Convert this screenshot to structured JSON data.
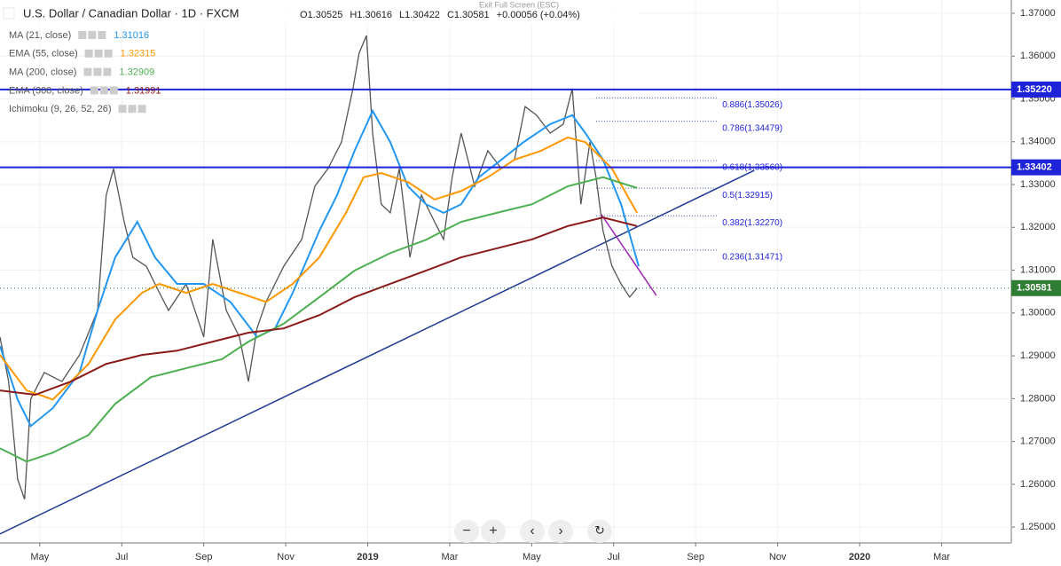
{
  "header": {
    "symbol": "U.S. Dollar / Canadian Dollar · 1D · FXCM",
    "ohlc": [
      "O1.30525",
      "H1.30616",
      "L1.30422",
      "C1.30581",
      "+0.00056 (+0.04%)"
    ],
    "exit": "Exit Full Screen (ESC)"
  },
  "indicators": [
    {
      "name": "MA (21, close)",
      "value": "1.31016",
      "color": "#2196f3"
    },
    {
      "name": "EMA (55, close)",
      "value": "1.32315",
      "color": "#ff9800"
    },
    {
      "name": "MA (200, close)",
      "value": "1.32909",
      "color": "#4caf50"
    },
    {
      "name": "EMA (300, close)",
      "value": "1.31991",
      "color": "#8b1a1a"
    },
    {
      "name": "Ichimoku (9, 26, 52, 26)",
      "value": null,
      "color": "#888"
    }
  ],
  "chart_data": {
    "type": "line",
    "xlim": [
      -0.97,
      23.7
    ],
    "ylim": [
      1.2463,
      1.3731
    ],
    "xticks": [
      {
        "value": 0,
        "label": "May"
      },
      {
        "value": 2,
        "label": "Jul"
      },
      {
        "value": 4,
        "label": "Sep"
      },
      {
        "value": 6,
        "label": "Nov"
      },
      {
        "value": 8,
        "label": "2019"
      },
      {
        "value": 10,
        "label": "Mar"
      },
      {
        "value": 12,
        "label": "May"
      },
      {
        "value": 14,
        "label": "Jul"
      },
      {
        "value": 16,
        "label": "Sep"
      },
      {
        "value": 18,
        "label": "Nov"
      },
      {
        "value": 20,
        "label": "2020"
      },
      {
        "value": 22,
        "label": "Mar"
      }
    ],
    "yticks": [
      {
        "value": 1.37,
        "label": "1.37000"
      },
      {
        "value": 1.36,
        "label": "1.36000"
      },
      {
        "value": 1.35,
        "label": "1.35000"
      },
      {
        "value": 1.34,
        "label": "1.34000"
      },
      {
        "value": 1.33,
        "label": "1.33000"
      },
      {
        "value": 1.32,
        "label": "1.32000"
      },
      {
        "value": 1.31,
        "label": "1.31000"
      },
      {
        "value": 1.3,
        "label": "1.30000"
      },
      {
        "value": 1.29,
        "label": "1.29000"
      },
      {
        "value": 1.28,
        "label": "1.28000"
      },
      {
        "value": 1.27,
        "label": "1.27000"
      },
      {
        "value": 1.26,
        "label": "1.26000"
      },
      {
        "value": 1.25,
        "label": "1.25000"
      }
    ],
    "grid": true,
    "series": [
      {
        "role": "price",
        "color": "#555555",
        "x": [
          -0.97,
          -0.76,
          -0.54,
          -0.37,
          -0.22,
          0.11,
          0.54,
          0.97,
          1.41,
          1.62,
          1.8,
          2.06,
          2.27,
          2.6,
          2.92,
          3.14,
          3.57,
          4.0,
          4.22,
          4.55,
          4.87,
          5.09,
          5.3,
          5.52,
          5.95,
          6.39,
          6.71,
          7.03,
          7.36,
          7.64,
          7.79,
          7.97,
          8.12,
          8.33,
          8.55,
          8.77,
          9.03,
          9.31,
          9.63,
          9.85,
          10.06,
          10.28,
          10.61,
          10.93,
          11.26,
          11.58,
          11.84,
          12.12,
          12.45,
          12.77,
          12.99,
          13.2,
          13.42,
          13.57,
          13.74,
          13.96,
          14.18,
          14.39,
          14.57
        ],
        "values": [
          1.2944,
          1.284,
          1.2612,
          1.2565,
          1.2799,
          1.2861,
          1.284,
          1.2902,
          1.3006,
          1.3275,
          1.3337,
          1.3213,
          1.313,
          1.3109,
          1.3047,
          1.3006,
          1.3068,
          1.2944,
          1.3172,
          1.3006,
          1.2944,
          1.284,
          1.2964,
          1.3026,
          1.3109,
          1.3172,
          1.3296,
          1.3337,
          1.3399,
          1.3524,
          1.3607,
          1.3648,
          1.342,
          1.3254,
          1.3234,
          1.3337,
          1.313,
          1.3275,
          1.3213,
          1.3172,
          1.3317,
          1.342,
          1.3296,
          1.3379,
          1.3337,
          1.3358,
          1.3482,
          1.3462,
          1.342,
          1.3441,
          1.3524,
          1.3254,
          1.3399,
          1.3317,
          1.3192,
          1.3109,
          1.3068,
          1.3037,
          1.3058
        ]
      },
      {
        "role": "ma",
        "color": "#2196f3",
        "x": [
          -0.97,
          -0.54,
          -0.22,
          0.32,
          0.97,
          1.41,
          1.84,
          2.38,
          2.81,
          3.35,
          4.0,
          4.65,
          5.3,
          5.74,
          6.17,
          6.82,
          7.25,
          7.68,
          8.12,
          8.55,
          8.98,
          9.42,
          9.85,
          10.28,
          10.71,
          11.26,
          11.8,
          12.45,
          12.99,
          13.31,
          13.74,
          14.18,
          14.61
        ],
        "values": [
          1.2923,
          1.2798,
          1.2736,
          1.2778,
          1.2861,
          1.3006,
          1.313,
          1.3213,
          1.313,
          1.3068,
          1.3068,
          1.3026,
          1.2944,
          1.2964,
          1.3047,
          1.3192,
          1.3275,
          1.3379,
          1.3472,
          1.3399,
          1.3296,
          1.3254,
          1.3234,
          1.3254,
          1.3317,
          1.3358,
          1.3399,
          1.3441,
          1.3462,
          1.342,
          1.3358,
          1.3254,
          1.3109
        ]
      },
      {
        "role": "ma",
        "color": "#ff9800",
        "x": [
          -0.97,
          -0.32,
          0.32,
          1.19,
          1.84,
          2.49,
          2.92,
          3.57,
          4.22,
          4.87,
          5.52,
          6.17,
          6.82,
          7.47,
          7.9,
          8.33,
          8.98,
          9.63,
          10.28,
          10.93,
          11.58,
          12.23,
          12.88,
          13.31,
          13.96,
          14.57
        ],
        "values": [
          1.2902,
          1.2819,
          1.2798,
          1.2881,
          1.2985,
          1.3047,
          1.3068,
          1.3047,
          1.3068,
          1.3047,
          1.3026,
          1.3068,
          1.313,
          1.3234,
          1.3317,
          1.3327,
          1.3306,
          1.3265,
          1.3285,
          1.3317,
          1.3358,
          1.3379,
          1.341,
          1.3399,
          1.3337,
          1.3234
        ]
      },
      {
        "role": "ma",
        "color": "#4caf50",
        "x": [
          -0.97,
          -0.32,
          0.32,
          1.19,
          1.84,
          2.71,
          3.57,
          4.44,
          5.09,
          5.95,
          6.82,
          7.68,
          8.55,
          9.42,
          10.28,
          11.15,
          12.01,
          12.88,
          13.74,
          14.57
        ],
        "values": [
          1.2684,
          1.2653,
          1.2674,
          1.2715,
          1.2788,
          1.285,
          1.2871,
          1.2892,
          1.2933,
          1.2975,
          1.3037,
          1.3099,
          1.314,
          1.3171,
          1.3213,
          1.3234,
          1.3254,
          1.3296,
          1.3317,
          1.3292
        ]
      },
      {
        "role": "ma",
        "color": "#8b1a1a",
        "x": [
          -0.97,
          -0.11,
          0.76,
          1.62,
          2.49,
          3.35,
          4.22,
          5.09,
          5.95,
          6.82,
          7.68,
          8.55,
          9.42,
          10.28,
          11.15,
          12.01,
          12.88,
          13.74,
          14.57
        ],
        "values": [
          1.2819,
          1.2809,
          1.284,
          1.2881,
          1.2902,
          1.2912,
          1.2933,
          1.2954,
          1.2964,
          1.2995,
          1.3037,
          1.3068,
          1.3099,
          1.313,
          1.3151,
          1.3172,
          1.3203,
          1.3223,
          1.3203
        ]
      }
    ],
    "trendlines": [
      {
        "color": "#1f3a93",
        "x": [
          -0.97,
          17.43
        ],
        "values": [
          1.2484,
          1.3333
        ]
      },
      {
        "color": "#9c27b0",
        "x": [
          13.7,
          15.04
        ],
        "values": [
          1.323,
          1.3041
        ]
      }
    ],
    "price_lines": [
      {
        "value": 1.3522,
        "label": "1.35220",
        "color": "#1e22d8"
      },
      {
        "value": 1.33402,
        "label": "1.33402",
        "color": "#1e22d8"
      }
    ],
    "last_price": {
      "value": 1.30581,
      "label": "1.30581",
      "color": "#2e7d32"
    },
    "fib_x": [
      13.57,
      16.52
    ],
    "fib_levels": [
      {
        "value": 1.35026,
        "label": "0.886(1.35026)"
      },
      {
        "value": 1.34479,
        "label": "0.786(1.34479)"
      },
      {
        "value": 1.3356,
        "label": "0.618(1.33560)"
      },
      {
        "value": 1.32915,
        "label": "0.5(1.32915)"
      },
      {
        "value": 1.3227,
        "label": "0.382(1.32270)"
      },
      {
        "value": 1.31471,
        "label": "0.236(1.31471)"
      }
    ]
  }
}
